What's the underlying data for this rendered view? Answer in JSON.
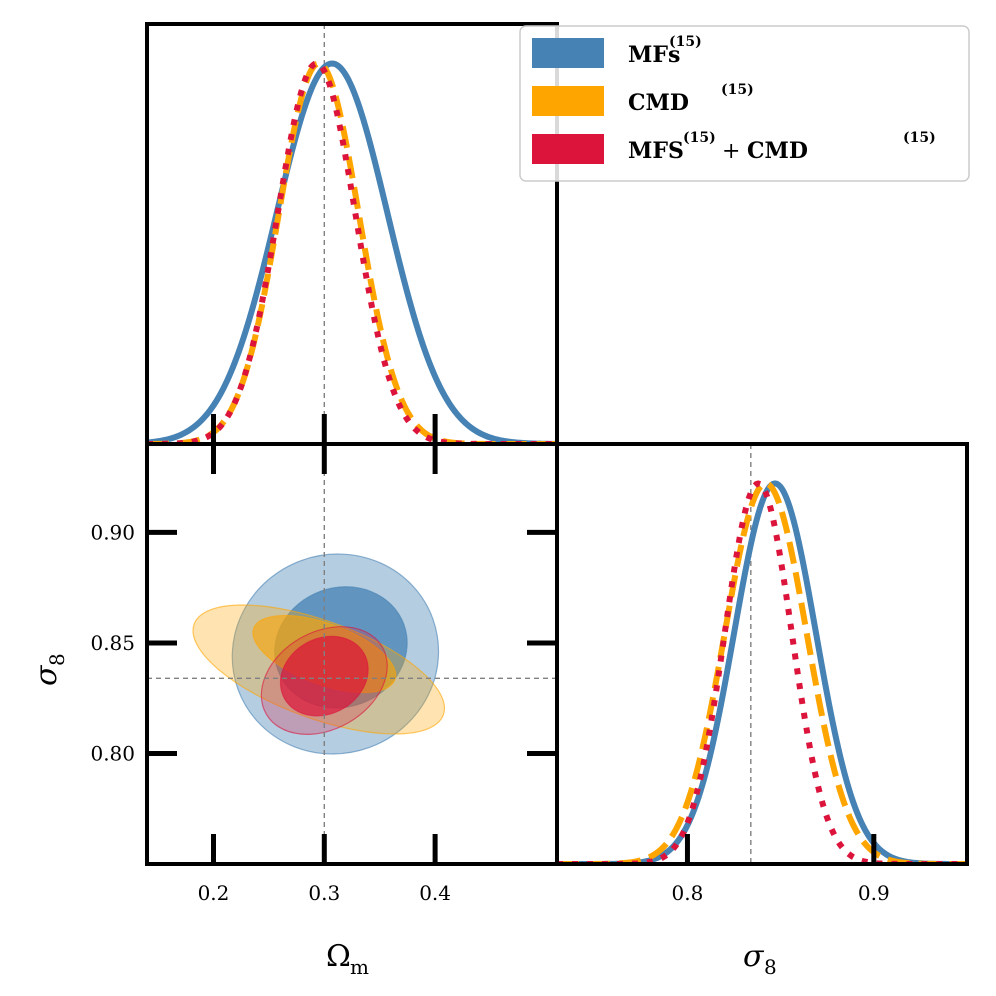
{
  "chart_data": {
    "type": "corner",
    "parameters": [
      {
        "name": "omega_m",
        "label": "Ω",
        "sub": "m",
        "range": [
          0.14,
          0.51
        ],
        "ticks": [
          0.2,
          0.3,
          0.4
        ],
        "tick_labels": [
          "0.2",
          "0.3",
          "0.4"
        ],
        "truth": 0.3
      },
      {
        "name": "sigma_8",
        "label": "σ",
        "sub": "8",
        "range": [
          0.75,
          0.94
        ],
        "ticks": [
          0.8,
          0.85,
          0.9
        ],
        "tick_labels": [
          "0.80",
          "0.85",
          "0.90"
        ],
        "truth": 0.834
      },
      {
        "name": "sigma_8_marginal",
        "range": [
          0.73,
          0.95
        ],
        "ticks": [
          0.8,
          0.9
        ],
        "tick_labels": [
          "0.8",
          "0.9"
        ]
      }
    ],
    "series": [
      {
        "id": "mfs",
        "name": "MFs",
        "sup": "(15)",
        "color": "#4682b4",
        "line_style": "solid",
        "omega_m_1d": {
          "mean": 0.307,
          "sd": 0.05
        },
        "sigma_8_1d": {
          "mean": 0.847,
          "sd": 0.022
        },
        "contours_2d": [
          {
            "level": "95%",
            "center": [
              0.31,
              0.845
            ],
            "semi_axes": [
              0.17,
              0.045
            ],
            "angle_deg": 20,
            "fill_opacity": 0.4
          },
          {
            "level": "68%",
            "center": [
              0.315,
              0.848
            ],
            "semi_axes": [
              0.11,
              0.027
            ],
            "angle_deg": 20,
            "fill_opacity": 0.75
          }
        ]
      },
      {
        "id": "cmd",
        "name": "CMD",
        "sup": "(15)",
        "color": "#ffa500",
        "line_style": "dashed",
        "omega_m_1d": {
          "mean": 0.295,
          "sd": 0.036
        },
        "sigma_8_1d": {
          "mean": 0.842,
          "sd": 0.022
        },
        "contours_2d": [
          {
            "level": "95%",
            "center": [
              0.295,
              0.838
            ],
            "semi_axes": [
              0.08,
              0.06
            ],
            "angle_deg": 70,
            "fill_opacity": 0.3
          },
          {
            "level": "68%",
            "center": [
              0.3,
              0.845
            ],
            "semi_axes": [
              0.05,
              0.034
            ],
            "angle_deg": 70,
            "fill_opacity": 0.6
          }
        ]
      },
      {
        "id": "mfs_cmd",
        "name": "MFS",
        "sup": "(15)",
        "plus": "+",
        "name2": "CMD",
        "sup2": "(15)",
        "color": "#dc143c",
        "line_style": "dotted",
        "omega_m_1d": {
          "mean": 0.293,
          "sd": 0.035
        },
        "sigma_8_1d": {
          "mean": 0.838,
          "sd": 0.018
        },
        "contours_2d": [
          {
            "level": "95%",
            "center": [
              0.3,
              0.833
            ],
            "semi_axes": [
              0.11,
              0.022
            ],
            "angle_deg": 30,
            "fill_opacity": 0.25
          },
          {
            "level": "68%",
            "center": [
              0.3,
              0.835
            ],
            "semi_axes": [
              0.075,
              0.017
            ],
            "angle_deg": 30,
            "fill_opacity": 0.7
          }
        ]
      }
    ],
    "truth_line_color": "#808080",
    "legend_location": "top-right"
  }
}
